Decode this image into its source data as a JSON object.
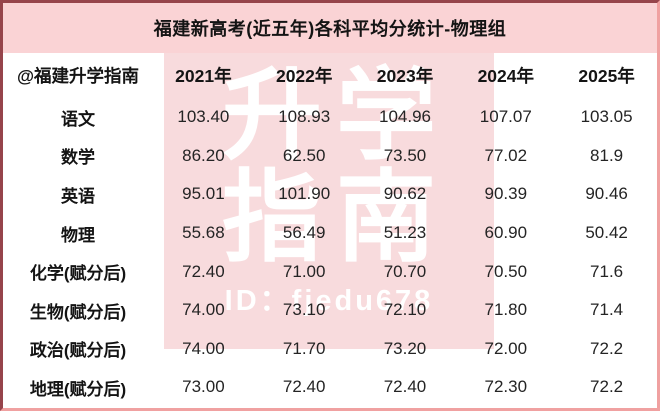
{
  "title": "福建新高考(近五年)各科平均分统计-物理组",
  "watermark": {
    "line1": "升学",
    "line2": "指南",
    "id_text": "ID：fjedu678"
  },
  "table": {
    "corner_label": "@福建升学指南",
    "year_headers": [
      "2021年",
      "2022年",
      "2023年",
      "2024年",
      "2025年"
    ],
    "rows": [
      {
        "label": "语文",
        "values": [
          "103.40",
          "108.93",
          "104.96",
          "107.07",
          "103.05"
        ]
      },
      {
        "label": "数学",
        "values": [
          "86.20",
          "62.50",
          "73.50",
          "77.02",
          "81.9"
        ]
      },
      {
        "label": "英语",
        "values": [
          "95.01",
          "101.90",
          "90.62",
          "90.39",
          "90.46"
        ]
      },
      {
        "label": "物理",
        "values": [
          "55.68",
          "56.49",
          "51.23",
          "60.90",
          "50.42"
        ]
      },
      {
        "label": "化学(赋分后)",
        "values": [
          "72.40",
          "71.00",
          "70.70",
          "70.50",
          "71.6"
        ]
      },
      {
        "label": "生物(赋分后)",
        "values": [
          "74.00",
          "73.10",
          "72.10",
          "71.80",
          "71.4"
        ]
      },
      {
        "label": "政治(赋分后)",
        "values": [
          "74.00",
          "71.70",
          "73.20",
          "72.00",
          "72.2"
        ]
      },
      {
        "label": "地理(赋分后)",
        "values": [
          "73.00",
          "72.40",
          "72.40",
          "72.30",
          "72.2"
        ]
      }
    ]
  },
  "colors": {
    "title_banner": "#fad3d5",
    "watermark_band": "#f8dbdd",
    "frame_dark": "#96444b",
    "frame_light": "#f0a1a1",
    "text": "#141414"
  },
  "chart_data": {
    "type": "table",
    "title": "福建新高考(近五年)各科平均分统计-物理组",
    "categories": [
      "2021年",
      "2022年",
      "2023年",
      "2024年",
      "2025年"
    ],
    "series": [
      {
        "name": "语文",
        "values": [
          103.4,
          108.93,
          104.96,
          107.07,
          103.05
        ]
      },
      {
        "name": "数学",
        "values": [
          86.2,
          62.5,
          73.5,
          77.02,
          81.9
        ]
      },
      {
        "name": "英语",
        "values": [
          95.01,
          101.9,
          90.62,
          90.39,
          90.46
        ]
      },
      {
        "name": "物理",
        "values": [
          55.68,
          56.49,
          51.23,
          60.9,
          50.42
        ]
      },
      {
        "name": "化学(赋分后)",
        "values": [
          72.4,
          71.0,
          70.7,
          70.5,
          71.6
        ]
      },
      {
        "name": "生物(赋分后)",
        "values": [
          74.0,
          73.1,
          72.1,
          71.8,
          71.4
        ]
      },
      {
        "name": "政治(赋分后)",
        "values": [
          74.0,
          71.7,
          73.2,
          72.0,
          72.2
        ]
      },
      {
        "name": "地理(赋分后)",
        "values": [
          73.0,
          72.4,
          72.4,
          72.3,
          72.2
        ]
      }
    ]
  }
}
